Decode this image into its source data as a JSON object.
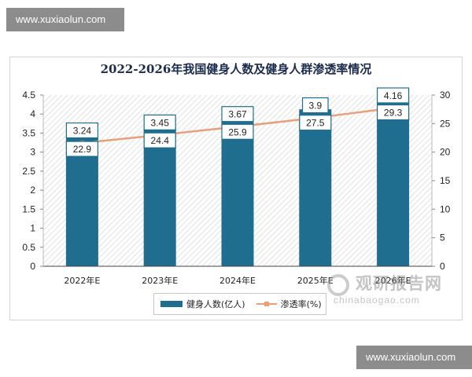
{
  "watermark": {
    "top_text": "www.xuxiaolun.com",
    "bottom_text": "www.xuxiaolun.com"
  },
  "logo": {
    "name": "观研报告网",
    "domain": "chinabaogao.com"
  },
  "colors": {
    "bar": "#1f6d8f",
    "line": "#e8a07a",
    "title": "#1a2b4c"
  },
  "chart_data": {
    "type": "bar",
    "title": "2022-2026年我国健身人数及健身人群渗透率情况",
    "categories": [
      "2022年E",
      "2023年E",
      "2024年E",
      "2025年E",
      "2026年E"
    ],
    "series": [
      {
        "name": "健身人数(亿人)",
        "type": "bar",
        "axis": "right",
        "values": [
          22.9,
          24.4,
          25.9,
          27.5,
          29.3
        ]
      },
      {
        "name": "渗透率(%)",
        "type": "line",
        "axis": "left",
        "values": [
          3.24,
          3.45,
          3.67,
          3.9,
          4.16
        ]
      }
    ],
    "y_left": {
      "min": 0,
      "max": 4.5,
      "ticks": [
        "0",
        "0.5",
        "1",
        "1.5",
        "2",
        "2.5",
        "3",
        "3.5",
        "4",
        "4.5"
      ]
    },
    "y_right": {
      "min": 0,
      "max": 30,
      "ticks": [
        "0",
        "5",
        "10",
        "15",
        "20",
        "25",
        "30"
      ]
    },
    "grid": false,
    "legend_position": "bottom"
  }
}
